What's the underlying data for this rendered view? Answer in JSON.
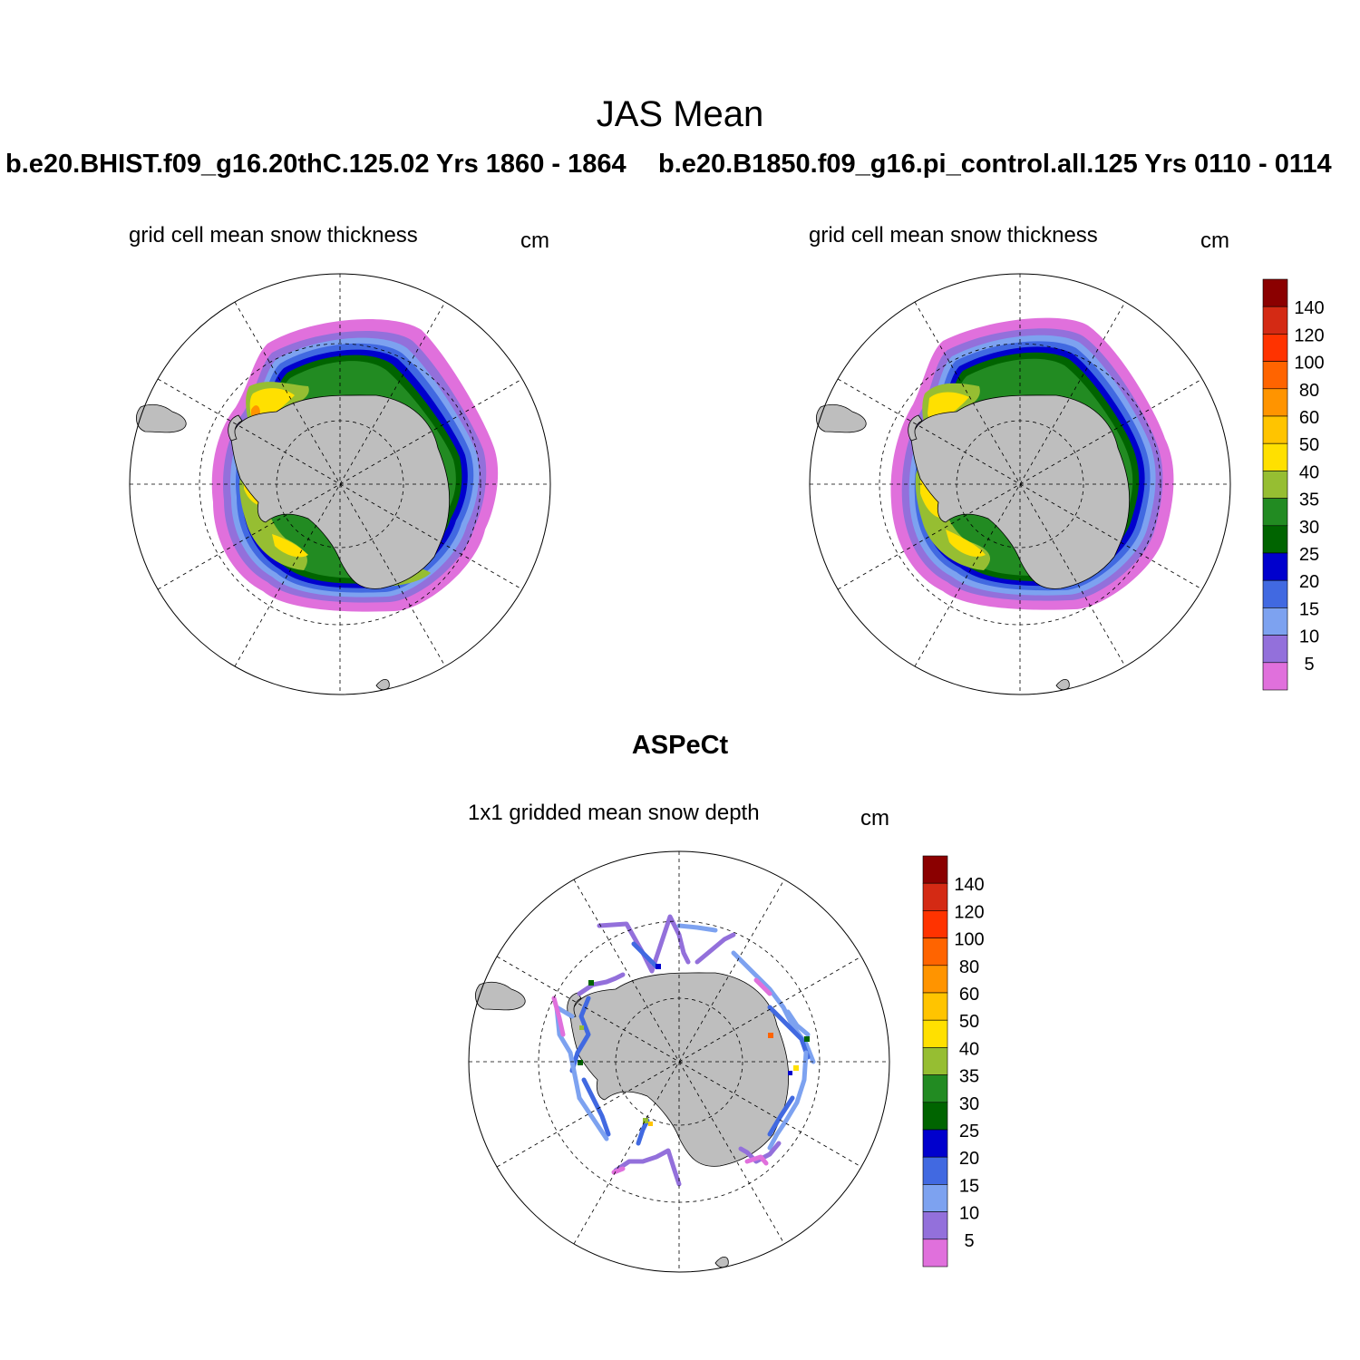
{
  "header": {
    "title": "JAS Mean",
    "left_run": "b.e20.BHIST.f09_g16.20thC.125.02  Yrs 1860 - 1864",
    "right_run": "b.e20.B1850.f09_g16.pi_control.all.125  Yrs 0110 - 0114",
    "obs_title": "ASPeCt"
  },
  "panels": [
    {
      "variable": "grid cell mean snow thickness",
      "unit": "cm"
    },
    {
      "variable": "grid cell mean snow thickness",
      "unit": "cm"
    },
    {
      "variable": "1x1 gridded mean snow depth",
      "unit": "cm"
    }
  ],
  "colorbar": {
    "labels": [
      "140",
      "120",
      "100",
      "80",
      "60",
      "50",
      "40",
      "35",
      "30",
      "25",
      "20",
      "15",
      "10",
      "5"
    ],
    "colors": [
      "#8b0000",
      "#d42a14",
      "#ff3300",
      "#ff6400",
      "#ff9400",
      "#ffc400",
      "#ffe000",
      "#96be32",
      "#228b22",
      "#006400",
      "#0000cd",
      "#4169e1",
      "#7da2f0",
      "#9370db",
      "#e070dc"
    ]
  },
  "colors": {
    "land": "#bebebe",
    "yellow": "#ffe000",
    "orange": "#ff9400",
    "lightgreen": "#96be32",
    "green": "#228b22",
    "darkgreen": "#006400",
    "darkblue": "#0000cd",
    "blue": "#4169e1",
    "lightblue": "#7da2f0",
    "purple": "#9370db",
    "pink": "#e070dc"
  }
}
